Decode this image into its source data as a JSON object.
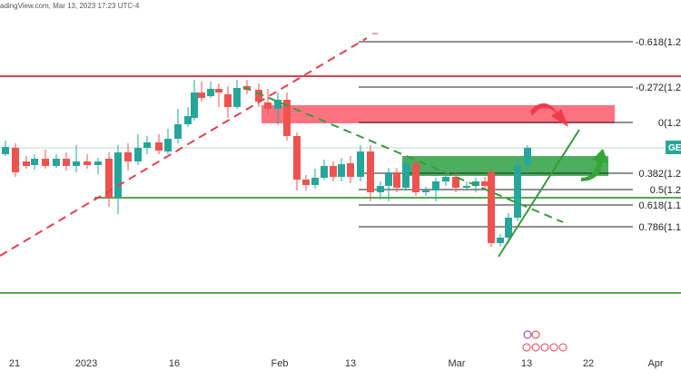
{
  "watermark": "adingView.com, Mar 13, 2023 17:23 UTC-4",
  "price_badge": "GE",
  "colors": {
    "up": "#26a69a",
    "down": "#ef5350",
    "green_line": "#3b9a3b",
    "red_line": "#e04050",
    "red_zone": "#ff5a6a",
    "green_zone": "#2ea043",
    "arrow_red": "#f03a4a",
    "arrow_green": "#35a535",
    "badge": "#26a69a"
  },
  "fib_levels": [
    {
      "label": "-0.618(1.2"
    },
    {
      "label": "-0.272(1.2"
    },
    {
      "label": "0(1.2"
    },
    {
      "label": "0.382(1.2"
    },
    {
      "label": "0.5(1.2"
    },
    {
      "label": "0.618(1.1"
    },
    {
      "label": "0.786(1.1"
    }
  ],
  "chart_data": {
    "type": "candlestick",
    "x_tick_labels": [
      "21",
      "2023",
      "16",
      "Feb",
      "13",
      "Mar",
      "13",
      "22",
      "Apr"
    ],
    "annotations": [
      "fibonacci retracement",
      "support line",
      "resistance line",
      "supply zone",
      "demand zone",
      "rising trendline",
      "falling trendline"
    ]
  }
}
